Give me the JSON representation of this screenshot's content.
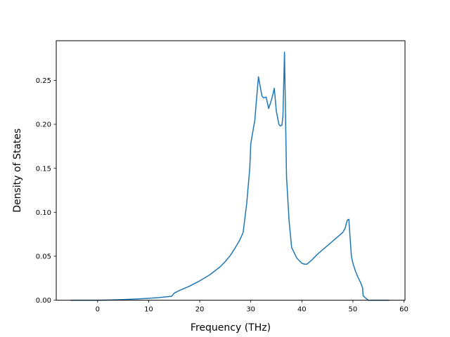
{
  "chart_data": {
    "type": "line",
    "title": "",
    "xlabel": "Frequency (THz)",
    "ylabel": "Density of States",
    "xlim": [
      -8.1,
      60.2
    ],
    "ylim": [
      0,
      0.295
    ],
    "xticks": [
      0,
      10,
      20,
      30,
      40,
      50,
      60
    ],
    "xtick_labels": [
      "0",
      "10",
      "20",
      "30",
      "40",
      "50",
      "60"
    ],
    "yticks": [
      0,
      0.05,
      0.1,
      0.15,
      0.2,
      0.25
    ],
    "ytick_labels": [
      "0.00",
      "0.05",
      "0.10",
      "0.15",
      "0.20",
      "0.25"
    ],
    "grid": false,
    "line_color": "#1f77b4",
    "series": [
      {
        "x": [
          -5.3,
          -2,
          0,
          2,
          4,
          6,
          8,
          10,
          12,
          14.5,
          15,
          16,
          18,
          20,
          22,
          24,
          25,
          26,
          27,
          27.8,
          28.5,
          29.2,
          29.5,
          29.8,
          30,
          30.5,
          30.8,
          31,
          31.5,
          32,
          32.2,
          32.5,
          33,
          33.5,
          33.9,
          34.2,
          34.6,
          35,
          35.5,
          35.8,
          36.1,
          36.3,
          36.6,
          37,
          37.5,
          38,
          38.5,
          39,
          39.5,
          40,
          40.5,
          41,
          42,
          43,
          44,
          45,
          46,
          47,
          48,
          48.5,
          48.7,
          48.9,
          49.2,
          49.7,
          50,
          50.5,
          51,
          51.5,
          51.9,
          52,
          53,
          55,
          57.1
        ],
        "y": [
          0,
          0,
          0,
          0.0002,
          0.0005,
          0.001,
          0.0015,
          0.0022,
          0.003,
          0.0045,
          0.008,
          0.011,
          0.016,
          0.022,
          0.029,
          0.038,
          0.044,
          0.051,
          0.06,
          0.068,
          0.077,
          0.11,
          0.13,
          0.15,
          0.178,
          0.195,
          0.205,
          0.22,
          0.254,
          0.238,
          0.232,
          0.23,
          0.231,
          0.218,
          0.225,
          0.231,
          0.241,
          0.215,
          0.2,
          0.198,
          0.199,
          0.21,
          0.282,
          0.14,
          0.09,
          0.06,
          0.054,
          0.048,
          0.045,
          0.042,
          0.041,
          0.041,
          0.046,
          0.052,
          0.057,
          0.062,
          0.067,
          0.072,
          0.077,
          0.082,
          0.087,
          0.091,
          0.092,
          0.05,
          0.042,
          0.033,
          0.026,
          0.02,
          0.014,
          0.005,
          0,
          0,
          0
        ]
      }
    ]
  }
}
